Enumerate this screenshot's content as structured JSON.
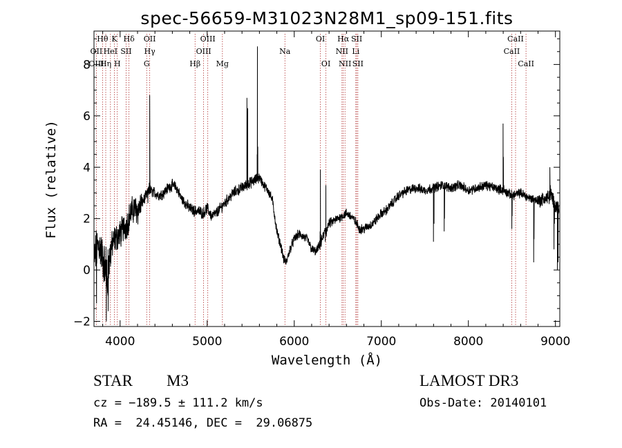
{
  "chart_data": {
    "type": "line",
    "title": "spec-56659-M31023N28M1_sp09-151.fits",
    "xlabel": "Wavelength (Å)",
    "ylabel": "Flux (relative)",
    "xlim": [
      3700,
      9050
    ],
    "ylim": [
      -2.2,
      9.3
    ],
    "xticks": [
      4000,
      5000,
      6000,
      7000,
      8000,
      9000
    ],
    "yticks": [
      -2,
      0,
      2,
      4,
      6,
      8
    ],
    "series": [
      {
        "name": "flux",
        "anchors": {
          "x": [
            3700,
            3730,
            3760,
            3790,
            3820,
            3850,
            3880,
            3910,
            3940,
            3970,
            4000,
            4030,
            4060,
            4090,
            4120,
            4160,
            4200,
            4250,
            4300,
            4340,
            4400,
            4450,
            4500,
            4550,
            4600,
            4650,
            4700,
            4750,
            4800,
            4850,
            4900,
            4950,
            5000,
            5050,
            5100,
            5150,
            5200,
            5250,
            5300,
            5350,
            5400,
            5450,
            5500,
            5550,
            5600,
            5650,
            5700,
            5750,
            5800,
            5850,
            5880,
            5910,
            5950,
            6000,
            6050,
            6100,
            6150,
            6200,
            6250,
            6300,
            6350,
            6400,
            6450,
            6500,
            6550,
            6600,
            6650,
            6700,
            6750,
            6800,
            6850,
            6900,
            6950,
            7000,
            7050,
            7100,
            7150,
            7200,
            7300,
            7400,
            7500,
            7600,
            7700,
            7800,
            7900,
            8000,
            8100,
            8200,
            8300,
            8400,
            8500,
            8600,
            8700,
            8800,
            8900,
            8950,
            9000
          ],
          "y": [
            0.4,
            0.8,
            1.0,
            0.6,
            0.2,
            -0.6,
            0.5,
            1.0,
            1.2,
            1.3,
            1.4,
            1.6,
            1.7,
            1.9,
            2.2,
            2.4,
            2.3,
            2.6,
            2.9,
            3.1,
            3.0,
            2.9,
            3.0,
            3.2,
            3.3,
            3.2,
            2.8,
            2.6,
            2.4,
            2.3,
            2.3,
            2.2,
            2.4,
            2.1,
            2.2,
            2.4,
            2.6,
            2.8,
            3.0,
            3.1,
            3.2,
            3.3,
            3.4,
            3.5,
            3.6,
            3.3,
            3.1,
            2.7,
            1.5,
            0.9,
            0.4,
            0.3,
            0.8,
            1.2,
            1.4,
            1.3,
            1.2,
            0.8,
            0.7,
            1.0,
            1.5,
            1.8,
            1.9,
            2.0,
            2.1,
            2.2,
            2.1,
            1.9,
            1.6,
            1.6,
            1.7,
            1.8,
            2.0,
            2.2,
            2.3,
            2.5,
            2.7,
            2.9,
            3.1,
            3.2,
            3.1,
            3.2,
            3.3,
            3.2,
            3.3,
            3.1,
            3.2,
            3.3,
            3.2,
            3.1,
            2.9,
            3.0,
            2.8,
            2.7,
            2.8,
            2.9,
            2.5
          ]
        },
        "features": [
          {
            "x": [
              4319,
              4327,
              4334,
              4340,
              4343
            ],
            "y": [
              2.6,
              3.1,
              3.4,
              6.8,
              3.5
            ]
          },
          {
            "x": [
              5449,
              5457,
              5461,
              5465,
              5472
            ],
            "y": [
              3.4,
              6.7,
              4.2,
              6.3,
              3.5
            ]
          },
          {
            "x": [
              5568,
              5574,
              5577,
              5581,
              5588
            ],
            "y": [
              3.6,
              4.5,
              8.7,
              4.8,
              3.6
            ]
          },
          {
            "x": [
              6292,
              6297,
              6300,
              6304,
              6310
            ],
            "y": [
              0.8,
              1.5,
              3.9,
              1.4,
              0.9
            ]
          },
          {
            "x": [
              6357,
              6360,
              6363,
              6366,
              6370
            ],
            "y": [
              1.1,
              1.6,
              3.3,
              1.4,
              1.3
            ]
          },
          {
            "x": [
              7594,
              7599,
              7605,
              7612
            ],
            "y": [
              3.2,
              1.1,
              1.8,
              3.1
            ]
          },
          {
            "x": [
              7718,
              7722,
              7726,
              7731
            ],
            "y": [
              3.3,
              1.5,
              2.0,
              3.2
            ]
          },
          {
            "x": [
              8393,
              8398,
              8402,
              8407
            ],
            "y": [
              3.2,
              5.7,
              4.4,
              3.3
            ]
          },
          {
            "x": [
              8495,
              8499,
              8502,
              8506
            ],
            "y": [
              2.9,
              1.6,
              2.1,
              2.8
            ]
          },
          {
            "x": [
              8746,
              8750,
              8754,
              8758
            ],
            "y": [
              2.8,
              0.3,
              1.2,
              2.8
            ]
          },
          {
            "x": [
              8933,
              8936,
              8941,
              8946
            ],
            "y": [
              2.7,
              4.0,
              3.3,
              2.9
            ]
          },
          {
            "x": [
              8978,
              8983,
              8988,
              8993
            ],
            "y": [
              2.8,
              0.8,
              1.8,
              2.7
            ]
          },
          {
            "x": [
              9015,
              9022,
              9030,
              9036
            ],
            "y": [
              2.4,
              0.0,
              0.3,
              2.3
            ]
          },
          {
            "x": [
              3725,
              3729,
              3734
            ],
            "y": [
              1.2,
              -1.3,
              0.9
            ]
          },
          {
            "x": [
              3838,
              3842,
              3847
            ],
            "y": [
              0.9,
              -2.0,
              0.4
            ]
          },
          {
            "x": [
              3860,
              3864,
              3868
            ],
            "y": [
              0.8,
              -1.6,
              0.5
            ]
          }
        ]
      }
    ],
    "lines": [
      {
        "name": "Hθ",
        "x": 3798,
        "row": 0
      },
      {
        "name": "K",
        "x": 3934,
        "row": 0
      },
      {
        "name": "Hδ",
        "x": 4102,
        "row": 0
      },
      {
        "name": "OII",
        "x": 4340,
        "row": 0
      },
      {
        "name": "OIII",
        "x": 5007,
        "row": 0
      },
      {
        "name": "OI",
        "x": 6300,
        "row": 0
      },
      {
        "name": "Hα",
        "x": 6563,
        "row": 0
      },
      {
        "name": "SII",
        "x": 6717,
        "row": 0
      },
      {
        "name": "CaII",
        "x": 8542,
        "row": 0
      },
      {
        "name": "OII",
        "x": 3727,
        "row": 1
      },
      {
        "name": "HeI",
        "x": 3889,
        "row": 1
      },
      {
        "name": "SII",
        "x": 4069,
        "row": 1
      },
      {
        "name": "Hγ",
        "x": 4340,
        "row": 1
      },
      {
        "name": "OIII",
        "x": 4959,
        "row": 1
      },
      {
        "name": "Na",
        "x": 5893,
        "row": 1
      },
      {
        "name": "NII",
        "x": 6548,
        "row": 1
      },
      {
        "name": "Li",
        "x": 6707,
        "row": 1
      },
      {
        "name": "CaII",
        "x": 8498,
        "row": 1
      },
      {
        "name": "OIII",
        "x": 3727,
        "row": 2
      },
      {
        "name": "Hη",
        "x": 3835,
        "row": 2
      },
      {
        "name": "H",
        "x": 3968,
        "row": 2
      },
      {
        "name": "G",
        "x": 4305,
        "row": 2
      },
      {
        "name": "Hβ",
        "x": 4861,
        "row": 2
      },
      {
        "name": "Mg",
        "x": 5175,
        "row": 2
      },
      {
        "name": "OI",
        "x": 6364,
        "row": 2
      },
      {
        "name": "NII",
        "x": 6583,
        "row": 2
      },
      {
        "name": "SII",
        "x": 6731,
        "row": 2
      },
      {
        "name": "CaII",
        "x": 8662,
        "row": 2
      }
    ]
  },
  "info": {
    "object_class": "STAR",
    "subclass": "M3",
    "cz": "cz = −189.5 ± 111.2 km/s",
    "coords": "RA =  24.45146, DEC =  29.06875",
    "survey": "LAMOST DR3",
    "obs_date": "Obs-Date: 20140101"
  },
  "colors": {
    "line_marker": "#b03030",
    "axis": "#000000",
    "spectrum": "#000000"
  }
}
